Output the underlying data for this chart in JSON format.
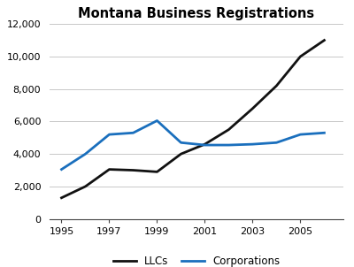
{
  "title": "Montana Business Registrations",
  "years": [
    1995,
    1996,
    1997,
    1998,
    1999,
    2000,
    2001,
    2002,
    2003,
    2004,
    2005,
    2006
  ],
  "llcs": [
    1300,
    2000,
    3050,
    3000,
    2900,
    4000,
    4600,
    5500,
    6800,
    8200,
    10000,
    11000
  ],
  "corps": [
    3050,
    4000,
    5200,
    5300,
    6050,
    4700,
    4550,
    4550,
    4600,
    4700,
    5200,
    5300
  ],
  "llc_color": "#111111",
  "corp_color": "#1a6fbd",
  "background_color": "#ffffff",
  "grid_color": "#c8c8c8",
  "ylim": [
    0,
    12000
  ],
  "yticks": [
    0,
    2000,
    4000,
    6000,
    8000,
    10000,
    12000
  ],
  "xticks": [
    1995,
    1997,
    1999,
    2001,
    2003,
    2005
  ],
  "xlim": [
    1994.5,
    2006.8
  ],
  "llc_label": "LLCs",
  "corp_label": "Corporations",
  "line_width": 2.0,
  "title_fontsize": 10.5,
  "tick_fontsize": 8,
  "legend_fontsize": 8.5
}
